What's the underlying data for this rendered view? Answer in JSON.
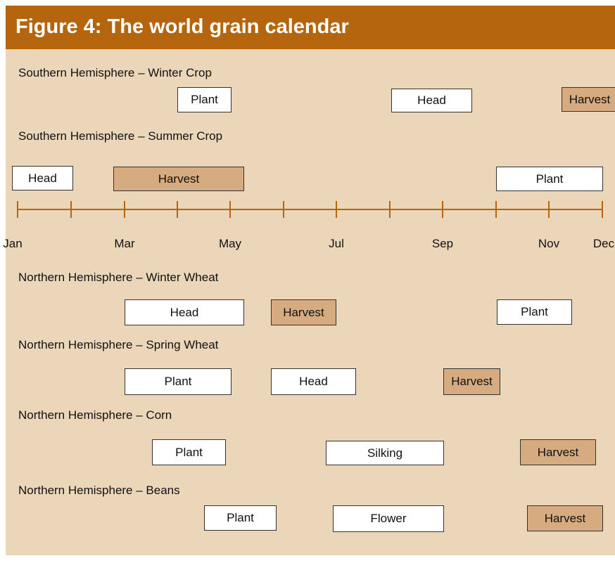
{
  "title": "Figure 4: The world grain calendar",
  "rows": [
    {
      "label": "Southern Hemisphere – Winter Crop",
      "boxes": [
        "Plant",
        "Head",
        "Harvest"
      ]
    },
    {
      "label": "Southern Hemisphere – Summer Crop",
      "boxes": [
        "Head",
        "Harvest",
        "Plant"
      ]
    },
    {
      "label": "Northern Hemisphere – Winter Wheat",
      "boxes": [
        "Head",
        "Harvest",
        "Plant"
      ]
    },
    {
      "label": "Northern Hemisphere – Spring Wheat",
      "boxes": [
        "Plant",
        "Head",
        "Harvest"
      ]
    },
    {
      "label": "Northern Hemisphere – Corn",
      "boxes": [
        "Plant",
        "Silking",
        "Harvest"
      ]
    },
    {
      "label": "Northern Hemisphere – Beans",
      "boxes": [
        "Plant",
        "Flower",
        "Harvest"
      ]
    }
  ],
  "timeline": {
    "months": [
      "Jan",
      "Mar",
      "May",
      "Jul",
      "Sep",
      "Nov",
      "Dec"
    ]
  }
}
